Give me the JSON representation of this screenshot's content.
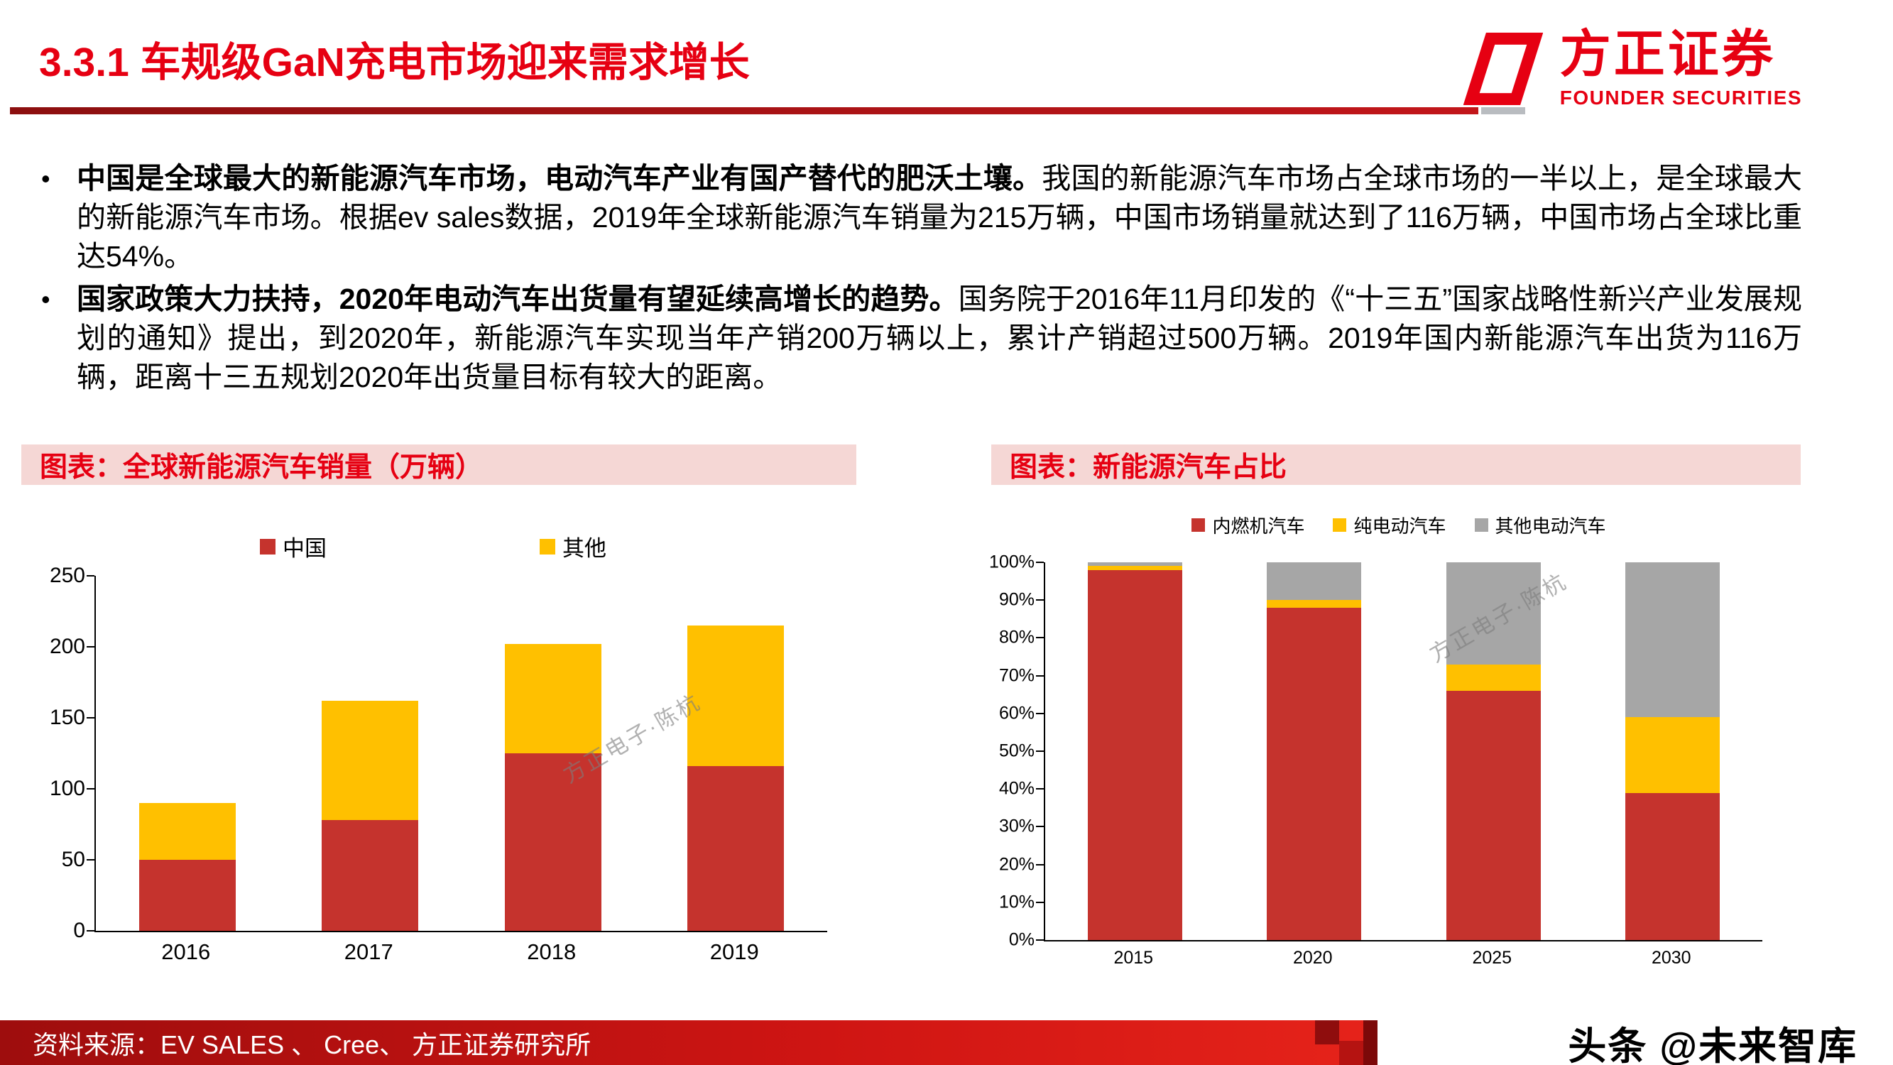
{
  "header": {
    "title": "3.3.1 车规级GaN充电市场迎来需求增长",
    "logo": {
      "name": "方正证券",
      "sub": "FOUNDER SECURITIES"
    }
  },
  "bullet_marker": "•",
  "bullets": [
    {
      "bold": "中国是全球最大的新能源汽车市场，电动汽车产业有国产替代的肥沃土壤。",
      "text": "我国的新能源汽车市场占全球市场的一半以上，是全球最大的新能源汽车市场。根据ev sales数据，2019年全球新能源汽车销量为215万辆，中国市场销量就达到了116万辆，中国市场占全球比重达54%。"
    },
    {
      "bold": "国家政策大力扶持，2020年电动汽车出货量有望延续高增长的趋势。",
      "text": "国务院于2016年11月印发的《“十三五”国家战略性新兴产业发展规划的通知》提出，到2020年，新能源汽车实现当年产销200万辆以上，累计产销超过500万辆。2019年国内新能源汽车出货为116万辆，距离十三五规划2020年出货量目标有较大的距离。"
    }
  ],
  "charts": {
    "left": {
      "header": "图表：全球新能源汽车销量（万辆）"
    },
    "right": {
      "header": "图表：新能源汽车占比"
    }
  },
  "chart_data": [
    {
      "type": "bar",
      "subtype": "stacked",
      "title": "全球新能源汽车销量（万辆）",
      "categories": [
        "2016",
        "2017",
        "2018",
        "2019"
      ],
      "series": [
        {
          "name": "中国",
          "color": "#C5332D",
          "values": [
            50,
            78,
            125,
            116
          ]
        },
        {
          "name": "其他",
          "color": "#FFC000",
          "values": [
            40,
            84,
            77,
            99
          ]
        }
      ],
      "ylim": [
        0,
        250
      ],
      "yticks": [
        0,
        50,
        100,
        150,
        200,
        250
      ],
      "xlabel": "",
      "ylabel": "",
      "grid": false,
      "legend_position": "top"
    },
    {
      "type": "bar",
      "subtype": "stacked-percent",
      "title": "新能源汽车占比",
      "categories": [
        "2015",
        "2020",
        "2025",
        "2030"
      ],
      "series": [
        {
          "name": "内燃机汽车",
          "color": "#C5332D",
          "values": [
            98,
            88,
            66,
            39
          ]
        },
        {
          "name": "纯电动汽车",
          "color": "#FFC000",
          "values": [
            1,
            2,
            7,
            20
          ]
        },
        {
          "name": "其他电动汽车",
          "color": "#A6A6A6",
          "values": [
            1,
            10,
            27,
            41
          ]
        }
      ],
      "ylim": [
        0,
        100
      ],
      "yticks": [
        "0%",
        "10%",
        "20%",
        "30%",
        "40%",
        "50%",
        "60%",
        "70%",
        "80%",
        "90%",
        "100%"
      ],
      "xlabel": "",
      "ylabel": "",
      "grid": false,
      "legend_position": "top"
    }
  ],
  "watermark": "方正电子·陈杭",
  "footer": {
    "source": "资料来源：EV SALES 、 Cree、 方正证券研究所",
    "brand": "头条 @未来智库"
  }
}
